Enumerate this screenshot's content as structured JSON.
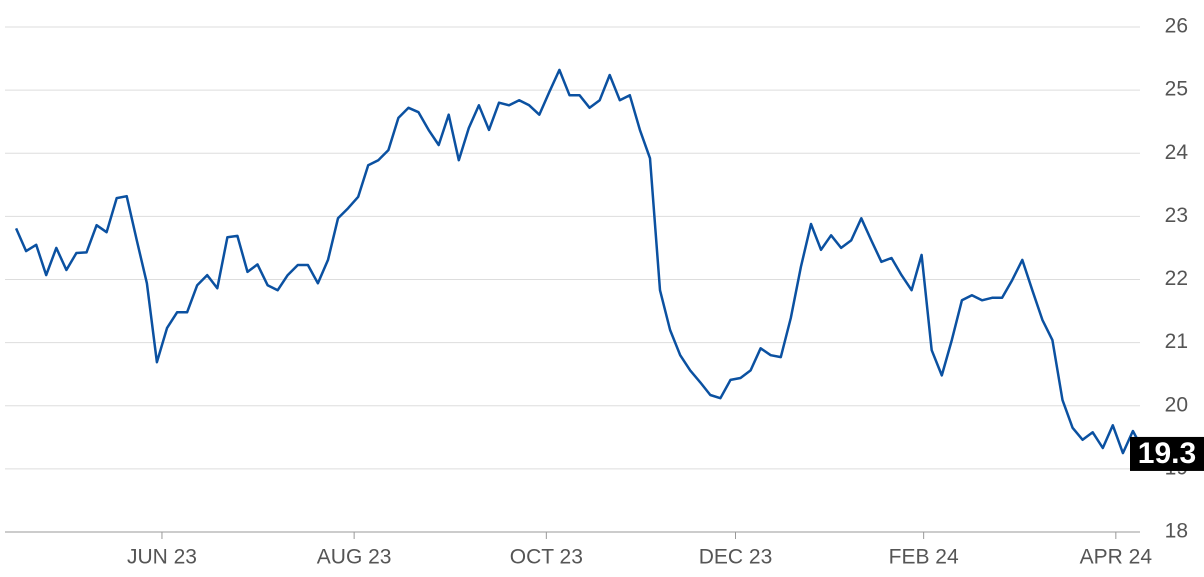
{
  "chart_data": {
    "type": "line",
    "color": "#0b51a1",
    "values": [
      22.81,
      22.45,
      22.55,
      22.07,
      22.5,
      22.15,
      22.42,
      22.43,
      22.86,
      22.75,
      23.29,
      23.32,
      22.62,
      21.94,
      20.69,
      21.23,
      21.48,
      21.48,
      21.91,
      22.07,
      21.86,
      22.67,
      22.69,
      22.12,
      22.24,
      21.91,
      21.83,
      22.07,
      22.23,
      22.23,
      21.94,
      22.31,
      22.97,
      23.13,
      23.31,
      23.81,
      23.89,
      24.05,
      24.56,
      24.72,
      24.65,
      24.37,
      24.13,
      24.61,
      23.89,
      24.4,
      24.76,
      24.37,
      24.8,
      24.76,
      24.84,
      24.76,
      24.61,
      24.97,
      25.32,
      24.92,
      24.92,
      24.72,
      24.84,
      25.24,
      24.84,
      24.92,
      24.37,
      23.92,
      21.83,
      21.2,
      20.8,
      20.56,
      20.37,
      20.17,
      20.12,
      20.41,
      20.44,
      20.56,
      20.91,
      20.8,
      20.77,
      21.39,
      22.2,
      22.88,
      22.47,
      22.7,
      22.5,
      22.62,
      22.97,
      22.62,
      22.28,
      22.34,
      22.07,
      21.83,
      22.39,
      20.88,
      20.48,
      21.04,
      21.67,
      21.75,
      21.67,
      21.71,
      21.71,
      21.99,
      22.31,
      21.83,
      21.36,
      21.04,
      20.09,
      19.65,
      19.46,
      19.58,
      19.33,
      19.69,
      19.25,
      19.6,
      19.3
    ],
    "xlim": [
      -1,
      112
    ],
    "xticks": [
      {
        "value": 14.5,
        "label": "JUN 23"
      },
      {
        "value": 33.6,
        "label": "AUG 23"
      },
      {
        "value": 52.7,
        "label": "OCT 23"
      },
      {
        "value": 71.5,
        "label": "DEC 23"
      },
      {
        "value": 90.2,
        "label": "FEB 24"
      },
      {
        "value": 109.3,
        "label": "APR 24"
      }
    ],
    "ylim": [
      18,
      26
    ],
    "yticks": [
      18,
      19,
      20,
      21,
      22,
      23,
      24,
      25,
      26
    ],
    "grid": true
  }
}
